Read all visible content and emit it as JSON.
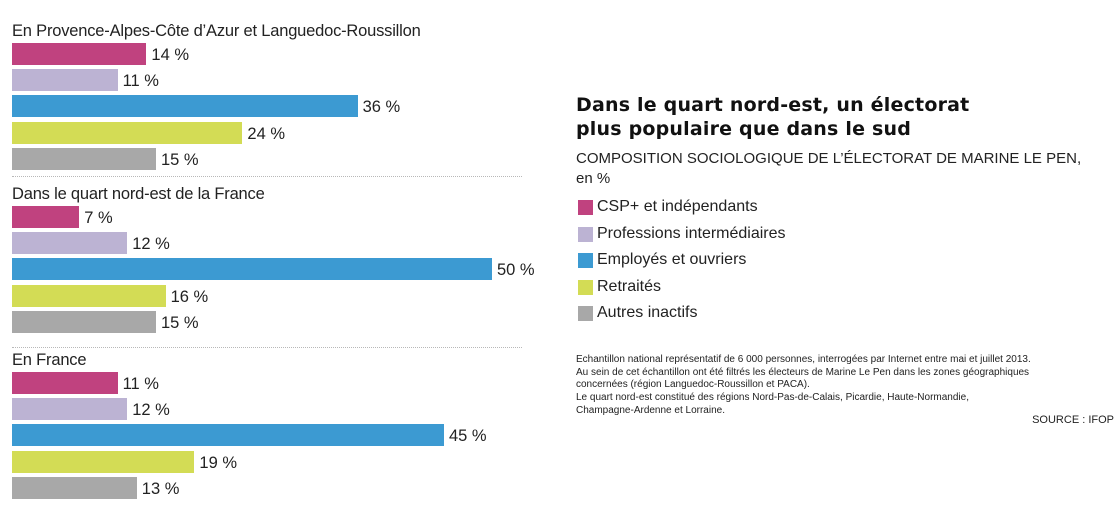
{
  "title_lines": [
    "Dans le quart nord-est, un électorat",
    "plus populaire que dans le sud"
  ],
  "subtitle_lines": [
    "COMPOSITION SOCIOLOGIQUE DE L’ÉLECTORAT DE MARINE LE PEN,",
    "en %"
  ],
  "colors": {
    "CSP+ et indépendants": "#c0427f",
    "Professions intermédiaires": "#bcb3d3",
    "Employés et ouvriers": "#3c9ad2",
    "Retraités": "#d3dc55",
    "Autres inactifs": "#a8a8a8"
  },
  "notes": [
    "Echantillon national représentatif de 6 000 personnes, interrogées par Internet entre mai et juillet 2013.",
    "Au sein de cet échantillon ont été filtrés les électeurs de Marine Le Pen dans les zones géographiques",
    "concernées (région Languedoc-Roussillon et PACA).",
    "Le quart nord-est constitué des régions Nord-Pas-de-Calais, Picardie, Haute-Normandie,",
    "Champagne-Ardenne et Lorraine."
  ],
  "source": "SOURCE : IFOP",
  "chart_data": {
    "type": "bar",
    "orientation": "horizontal",
    "unit": "%",
    "categories": [
      "CSP+ et indépendants",
      "Professions intermédiaires",
      "Employés et ouvriers",
      "Retraités",
      "Autres inactifs"
    ],
    "groups": [
      {
        "name": "En Provence-Alpes-Côte d’Azur et Languedoc-Roussillon",
        "values": [
          14,
          11,
          36,
          24,
          15
        ],
        "labels": [
          "14 %",
          "11 %",
          "36 %",
          "24 %",
          "15 %"
        ]
      },
      {
        "name": "Dans le quart nord-est de la France",
        "values": [
          7,
          12,
          50,
          16,
          15
        ],
        "labels": [
          "7 %",
          "12 %",
          "50 %",
          "16 %",
          "15 %"
        ]
      },
      {
        "name": "En France",
        "values": [
          11,
          12,
          45,
          19,
          13
        ],
        "labels": [
          "11 %",
          "12 %",
          "45 %",
          "19 %",
          "13 %"
        ]
      }
    ],
    "legend": [
      "CSP+ et indépendants",
      "Professions intermédiaires",
      "Employés et ouvriers",
      "Retraités",
      "Autres inactifs"
    ],
    "legend_position": "right",
    "grid": false,
    "xlim": [
      0,
      50
    ]
  }
}
